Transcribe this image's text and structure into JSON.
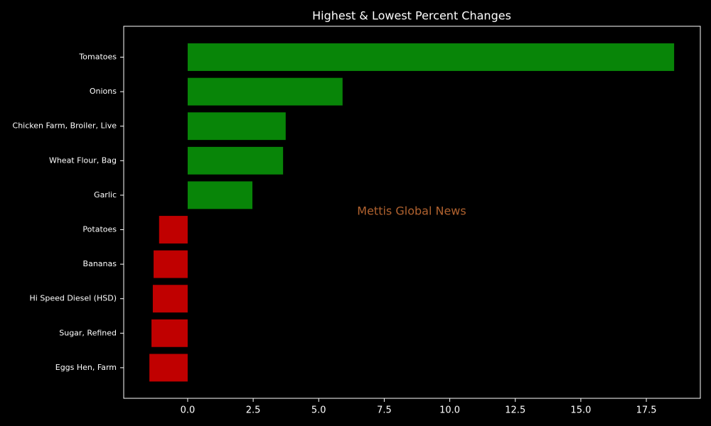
{
  "chart_data": {
    "type": "bar",
    "orientation": "horizontal",
    "title": "Highest & Lowest Percent Changes",
    "annotation": "Mettis Global News",
    "categories": [
      "Tomatoes",
      "Onions",
      "Chicken Farm, Broiler, Live",
      "Wheat Flour, Bag",
      "Garlic",
      "Potatoes",
      "Bananas",
      "Hi Speed Diesel (HSD)",
      "Sugar, Refined",
      "Eggs Hen, Farm"
    ],
    "values": [
      18.56,
      5.91,
      3.74,
      3.64,
      2.47,
      -1.09,
      -1.3,
      -1.33,
      -1.38,
      -1.46
    ],
    "colors": [
      "#088508",
      "#088508",
      "#088508",
      "#088508",
      "#088508",
      "#c00000",
      "#c00000",
      "#c00000",
      "#c00000",
      "#c00000"
    ],
    "xlim": [
      -2.44,
      19.56
    ],
    "xticks": [
      {
        "value": 0,
        "label": "0.0"
      },
      2.5,
      {
        "value": 5,
        "label": "5.0"
      },
      7.5,
      {
        "value": 10,
        "label": "10.0"
      },
      12.5,
      {
        "value": 15,
        "label": "15.0"
      },
      17.5
    ],
    "grid": false
  }
}
